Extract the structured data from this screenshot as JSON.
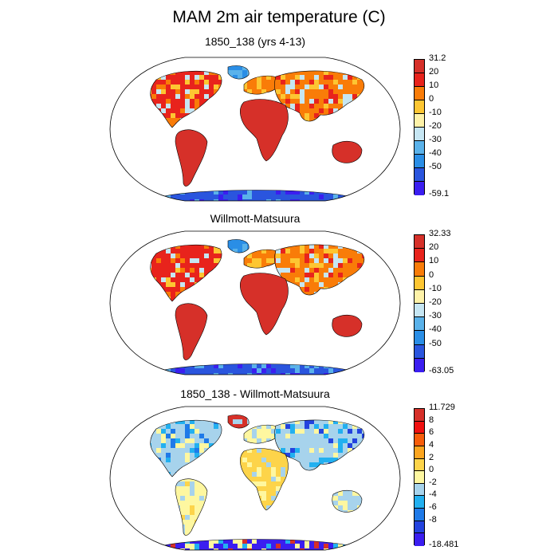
{
  "main_title": "MAM 2m air temperature (C)",
  "panels": [
    {
      "title": "1850_138 (yrs 4-13)",
      "colorbar": {
        "labels": [
          "31.2",
          "20",
          "10",
          "0",
          "-10",
          "-20",
          "-30",
          "-40",
          "-50",
          "-59.1"
        ],
        "colors": [
          "#d63029",
          "#e8231c",
          "#f97c08",
          "#fdc632",
          "#fef2a8",
          "#c6e6f3",
          "#5ab2ea",
          "#2a8ee6",
          "#2a55de",
          "#3b1ef0"
        ]
      }
    },
    {
      "title": "Willmott-Matsuura",
      "colorbar": {
        "labels": [
          "32.33",
          "20",
          "10",
          "0",
          "-10",
          "-20",
          "-30",
          "-40",
          "-50",
          "-63.05"
        ],
        "colors": [
          "#d63029",
          "#e8231c",
          "#f97c08",
          "#fdc632",
          "#fef2a8",
          "#c6e6f3",
          "#5ab2ea",
          "#2a8ee6",
          "#2a55de",
          "#3b1ef0"
        ]
      }
    },
    {
      "title": "1850_138 - Willmott-Matsuura",
      "colorbar": {
        "labels": [
          "11.729",
          "8",
          "6",
          "4",
          "2",
          "0",
          "-2",
          "-4",
          "-6",
          "-8",
          "-18.481"
        ],
        "colors": [
          "#d63029",
          "#f01010",
          "#f85d0a",
          "#fca51f",
          "#fdd44a",
          "#fef7a0",
          "#a7d3ec",
          "#22b0f0",
          "#1f7ae8",
          "#2343df",
          "#3b1ef0"
        ]
      }
    }
  ]
}
